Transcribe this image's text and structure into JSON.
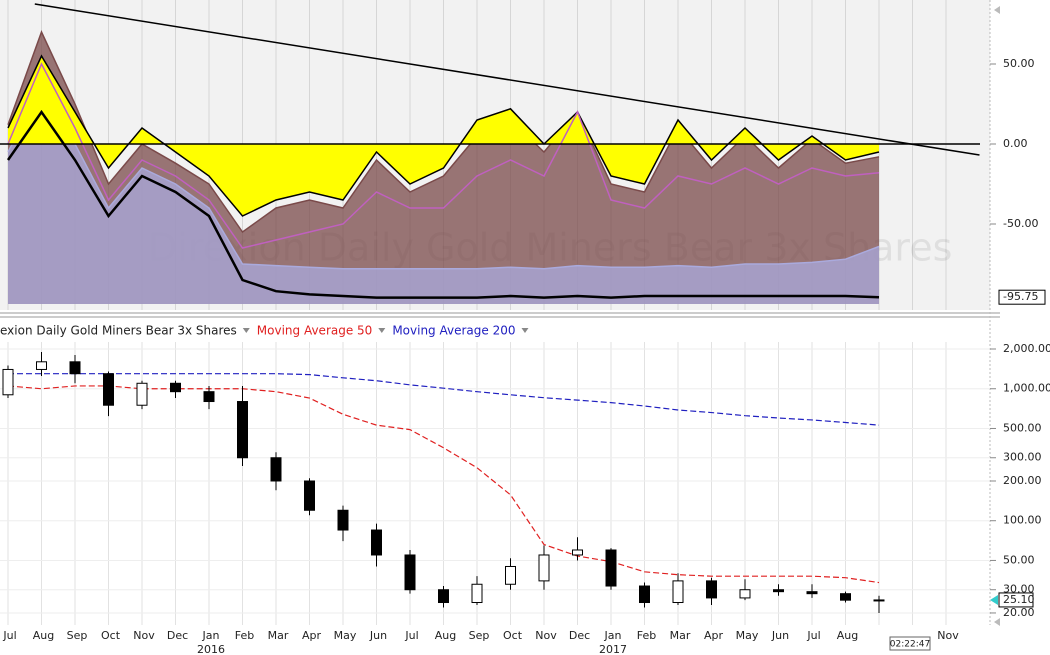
{
  "chart_data": [
    {
      "type": "area",
      "watermark": "Direxion Daily Gold Miners Bear 3x Shares",
      "ylim": [
        -100,
        90
      ],
      "yticks": [
        {
          "value": 50,
          "label": "50.00"
        },
        {
          "value": 0,
          "label": "0.00"
        },
        {
          "value": -50,
          "label": "-50.00"
        }
      ],
      "current_value": -95.75,
      "series": [
        {
          "color": "#7a4a4a",
          "style": "area",
          "values": [
            12,
            70,
            25,
            -25,
            0,
            -12,
            -25,
            -55,
            -40,
            -35,
            -40,
            -10,
            -30,
            -20,
            5,
            15,
            -5,
            20,
            -25,
            -30,
            10,
            -15,
            5,
            -15,
            3,
            -12,
            -8,
            null,
            null
          ]
        },
        {
          "color": "#aaaadd",
          "style": "area",
          "values": [
            -5,
            35,
            0,
            -40,
            -15,
            -25,
            -40,
            -75,
            -76,
            -77,
            -78,
            -78,
            -78,
            -78,
            -78,
            -77,
            -78,
            -76,
            -77,
            -77,
            -76,
            -77,
            -75,
            -75,
            -74,
            -72,
            -64,
            null,
            null
          ]
        },
        {
          "color": "#ffff00",
          "style": "area-zero",
          "values": [
            10,
            55,
            20,
            -15,
            10,
            -5,
            -20,
            -45,
            -35,
            -30,
            -35,
            -5,
            -25,
            -15,
            15,
            22,
            0,
            20,
            -20,
            -25,
            15,
            -10,
            10,
            -10,
            5,
            -10,
            -5,
            null,
            null
          ]
        },
        {
          "color": "#c060c0",
          "style": "line",
          "values": [
            0,
            50,
            10,
            -35,
            -10,
            -20,
            -35,
            -65,
            -60,
            -55,
            -50,
            -30,
            -40,
            -40,
            -20,
            -10,
            -20,
            20,
            -35,
            -40,
            -20,
            -25,
            -15,
            -25,
            -15,
            -20,
            -18,
            null,
            null
          ]
        },
        {
          "color": "#000000",
          "style": "line",
          "values": [
            -10,
            20,
            -10,
            -45,
            -20,
            -30,
            -45,
            -85,
            -92,
            -94,
            -95,
            -96,
            -96,
            -96,
            -96,
            -95,
            -96,
            -95,
            -96,
            -95,
            -95,
            -95,
            -95,
            -95,
            -95,
            -95,
            -95.75,
            null,
            null
          ]
        }
      ],
      "trendline": {
        "color": "#000000",
        "x": [
          0.8,
          29
        ],
        "y": [
          87.5,
          -6.9
        ]
      }
    },
    {
      "type": "candlestick",
      "legend": "exion Daily Gold Miners Bear 3x Shares",
      "categories": [
        "Jul",
        "Aug",
        "Sep",
        "Oct",
        "Nov",
        "Dec",
        "Jan",
        "Feb",
        "Mar",
        "Apr",
        "May",
        "Jun",
        "Jul",
        "Aug",
        "Sep",
        "Oct",
        "Nov",
        "Dec",
        "Jan",
        "Feb",
        "Mar",
        "Apr",
        "May",
        "Jun",
        "Jul",
        "Aug",
        null,
        null,
        "Nov"
      ],
      "years": [
        {
          "label": "2016",
          "at": 6
        },
        {
          "label": "2017",
          "at": 18
        }
      ],
      "open": [
        900,
        1400,
        1600,
        1300,
        750,
        1100,
        950,
        800,
        300,
        200,
        120,
        85,
        55,
        30,
        24,
        33,
        35,
        55,
        60,
        32,
        24,
        35,
        26,
        30,
        29,
        28,
        25,
        null,
        null
      ],
      "high": [
        1500,
        1900,
        1800,
        1350,
        1150,
        1150,
        1050,
        1050,
        330,
        210,
        130,
        95,
        60,
        32,
        38,
        52,
        65,
        75,
        62,
        34,
        40,
        37,
        36,
        33,
        33,
        29,
        27,
        null,
        null
      ],
      "low": [
        850,
        1250,
        1100,
        620,
        700,
        850,
        700,
        260,
        170,
        110,
        70,
        45,
        28,
        22,
        23,
        30,
        30,
        50,
        30,
        22,
        23,
        23,
        25,
        27,
        26,
        24,
        20,
        null,
        null
      ],
      "close": [
        1400,
        1600,
        1300,
        750,
        1100,
        950,
        800,
        300,
        200,
        120,
        85,
        55,
        30,
        24,
        33,
        45,
        55,
        60,
        32,
        24,
        35,
        26,
        30,
        29,
        28,
        25,
        25.1,
        null,
        null
      ],
      "series": [
        {
          "name": "Moving Average 50",
          "color": "#e02020",
          "values": [
            1050,
            1000,
            1050,
            1050,
            1000,
            1000,
            1000,
            1000,
            950,
            850,
            640,
            530,
            490,
            357,
            252,
            157,
            66,
            54,
            49,
            41,
            39,
            38,
            38,
            38,
            38,
            37,
            34,
            null,
            null
          ]
        },
        {
          "name": "Moving Average 200",
          "color": "#2020c0",
          "values": [
            1300,
            1300,
            1300,
            1300,
            1300,
            1300,
            1300,
            1300,
            1300,
            1280,
            1210,
            1150,
            1070,
            1010,
            950,
            900,
            855,
            820,
            785,
            740,
            690,
            660,
            625,
            600,
            580,
            555,
            530,
            null,
            null
          ]
        }
      ],
      "log_scale": true,
      "grid": true,
      "ylim": [
        18,
        2300
      ],
      "yticks": [
        {
          "value": 2000,
          "label": "2,000.00"
        },
        {
          "value": 1000,
          "label": "1,000.00"
        },
        {
          "value": 500,
          "label": "500.00"
        },
        {
          "value": 300,
          "label": "300.00"
        },
        {
          "value": 200,
          "label": "200.00"
        },
        {
          "value": 100,
          "label": "100.00"
        },
        {
          "value": 50,
          "label": "50.00"
        },
        {
          "value": 30,
          "label": "30.00"
        },
        {
          "value": 20,
          "label": "20.00"
        }
      ],
      "current_price": {
        "value": 25.1,
        "label": "25.10"
      },
      "time_label": "02:22:47"
    }
  ]
}
